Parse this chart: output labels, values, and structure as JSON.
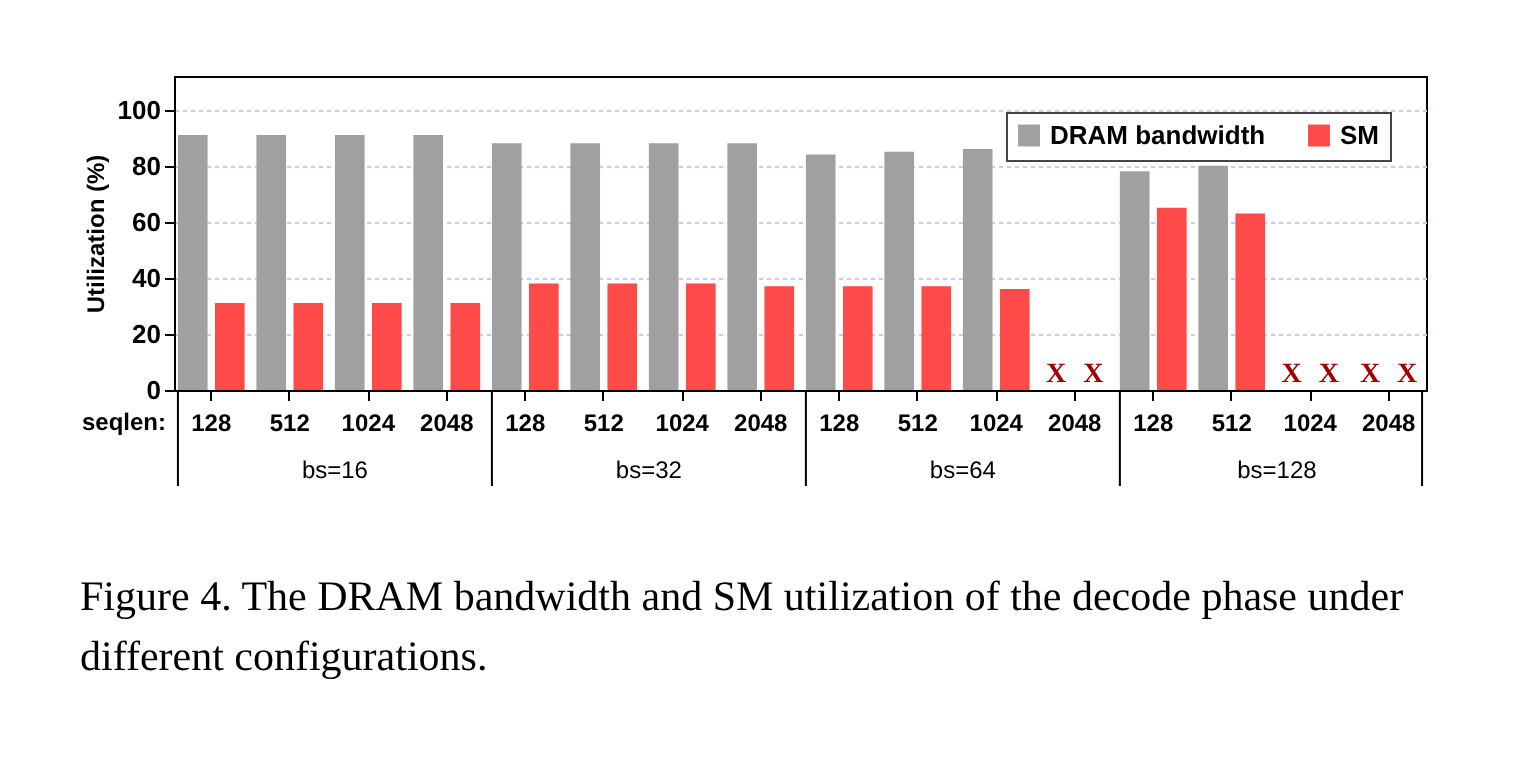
{
  "chart_data": {
    "type": "bar",
    "ylabel": "Utilization (%)",
    "categories": [
      "128",
      "512",
      "1024",
      "2048",
      "128",
      "512",
      "1024",
      "2048",
      "128",
      "512",
      "1024",
      "2048",
      "128",
      "512",
      "1024",
      "2048"
    ],
    "series": [
      {
        "name": "DRAM bandwidth",
        "color": "#a0a0a0",
        "values": [
          91,
          91,
          91,
          91,
          88,
          88,
          88,
          88,
          84,
          85,
          86,
          null,
          78,
          80,
          null,
          null
        ],
        "value_labels": [
          null,
          null,
          null,
          null,
          null,
          null,
          null,
          null,
          null,
          null,
          null,
          "X",
          null,
          null,
          "X",
          "X"
        ]
      },
      {
        "name": "SM",
        "color": "#ff4a4a",
        "values": [
          31,
          31,
          31,
          31,
          38,
          38,
          38,
          37,
          37,
          37,
          36,
          null,
          65,
          63,
          null,
          null
        ],
        "value_labels": [
          null,
          null,
          null,
          null,
          null,
          null,
          null,
          null,
          null,
          null,
          null,
          "X",
          null,
          null,
          "X",
          "X"
        ]
      }
    ],
    "ylim": [
      0,
      112
    ],
    "yticks": [
      0,
      20,
      40,
      60,
      80,
      100
    ],
    "grid": "y",
    "legend": "top right",
    "annotations": [
      "Figure 4. The DRAM bandwidth and SM utilization of the decode phase under different configurations.",
      "seqlen:",
      "bs=16",
      "bs=32",
      "bs=64",
      "bs=128"
    ]
  }
}
